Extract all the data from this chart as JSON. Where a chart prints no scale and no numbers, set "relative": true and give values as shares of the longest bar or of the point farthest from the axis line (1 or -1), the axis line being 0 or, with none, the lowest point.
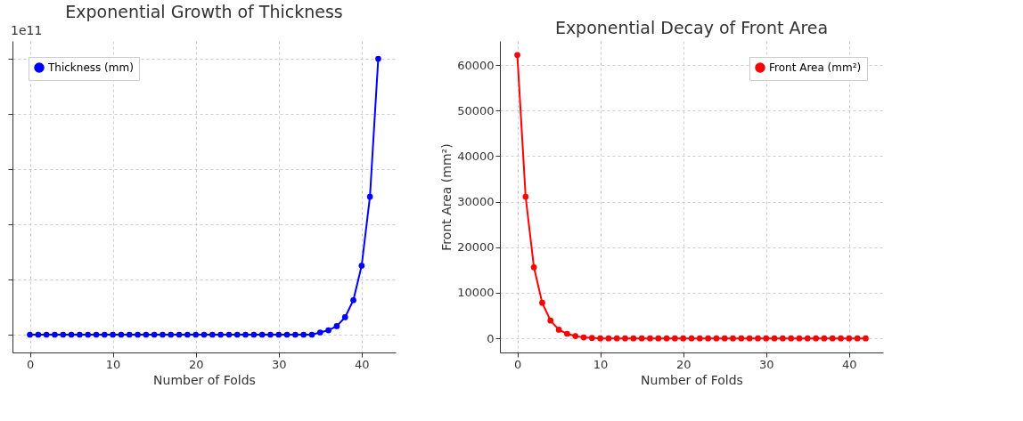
{
  "chart_data": [
    {
      "type": "line",
      "title": "Exponential Growth of Thickness",
      "xlabel": "Number of Folds",
      "relative": true,
      "x": [
        0,
        1,
        2,
        3,
        4,
        5,
        6,
        7,
        8,
        9,
        10,
        11,
        12,
        13,
        14,
        15,
        16,
        17,
        18,
        19,
        20,
        21,
        22,
        23,
        24,
        25,
        26,
        27,
        28,
        29,
        30,
        31,
        32,
        33,
        34,
        35,
        36,
        37,
        38,
        39,
        40,
        41,
        42
      ],
      "series": [
        {
          "name": "Thickness (mm)",
          "color": "#0000ff",
          "values": [
            0,
            0,
            0,
            0,
            0,
            0,
            0,
            0,
            0,
            0,
            0,
            0,
            0,
            0,
            0,
            0,
            0,
            0,
            0,
            0,
            0,
            0,
            0,
            0,
            0,
            0,
            0,
            0,
            0,
            0,
            0,
            0,
            0,
            0,
            0,
            0.008,
            0.016,
            0.031,
            0.063,
            0.125,
            0.25,
            0.5,
            1
          ]
        }
      ],
      "xlim": [
        -2.1,
        44.1
      ],
      "xticks": [
        0,
        10,
        20,
        30,
        40
      ],
      "grid": true,
      "legend": "top left",
      "marker": "circle",
      "line_style": "solid",
      "annotations": [
        "1e11"
      ]
    },
    {
      "type": "line",
      "title": "Exponential Decay of Front Area",
      "xlabel": "Number of Folds",
      "ylabel": "Front Area (mm²)",
      "x": [
        0,
        1,
        2,
        3,
        4,
        5,
        6,
        7,
        8,
        9,
        10,
        11,
        12,
        13,
        14,
        15,
        16,
        17,
        18,
        19,
        20,
        21,
        22,
        23,
        24,
        25,
        26,
        27,
        28,
        29,
        30,
        31,
        32,
        33,
        34,
        35,
        36,
        37,
        38,
        39,
        40,
        41,
        42
      ],
      "series": [
        {
          "name": "Front Area (mm²)",
          "color": "#ff0000",
          "values": [
            62200,
            31100,
            15600,
            7800,
            3900,
            1900,
            1000,
            500,
            200,
            100,
            0,
            0,
            0,
            0,
            0,
            0,
            0,
            0,
            0,
            0,
            0,
            0,
            0,
            0,
            0,
            0,
            0,
            0,
            0,
            0,
            0,
            0,
            0,
            0,
            0,
            0,
            0,
            0,
            0,
            0,
            0,
            0,
            0
          ]
        }
      ],
      "xlim": [
        -2.1,
        44.1
      ],
      "xticks": [
        0,
        10,
        20,
        30,
        40
      ],
      "ylim": [
        -3100,
        65300
      ],
      "yticks": [
        0,
        10000,
        20000,
        30000,
        40000,
        50000,
        60000
      ],
      "grid": true,
      "legend": "top right",
      "marker": "circle",
      "line_style": "solid"
    }
  ]
}
